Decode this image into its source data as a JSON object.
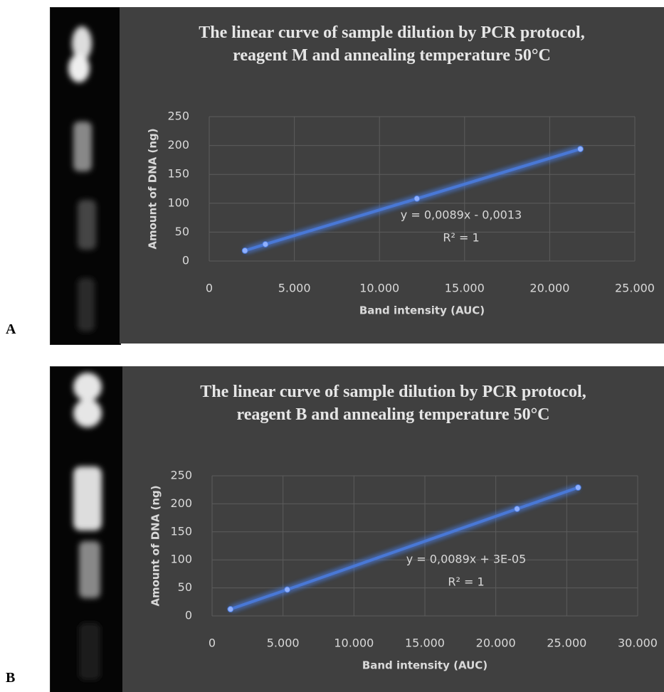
{
  "chart_data": [
    {
      "type": "scatter",
      "panel_label": "A",
      "title": "The linear curve of sample dilution by PCR protocol, reagent M and annealing temperature 50°C",
      "xlabel": "Band intensity (AUC)",
      "ylabel": "Amount of DNA  (ng)",
      "x": [
        2100,
        3300,
        12200,
        21800
      ],
      "values": [
        18,
        29,
        108,
        194
      ],
      "color": "#4a78d6",
      "grid": true,
      "line": true,
      "xlim": [
        0,
        25000
      ],
      "xticks": [
        0,
        {
          "value": 5000,
          "label": "5.000"
        },
        {
          "value": 10000,
          "label": "10.000"
        },
        {
          "value": 15000,
          "label": "15.000"
        },
        {
          "value": 20000,
          "label": "20.000"
        },
        {
          "value": 25000,
          "label": "25.000"
        }
      ],
      "ylim": [
        0,
        250
      ],
      "yticks": [
        0,
        50,
        100,
        150,
        200,
        250
      ],
      "annotations": [
        "y = 0,0089x - 0,0013",
        "R² = 1"
      ]
    },
    {
      "type": "scatter",
      "panel_label": "B",
      "title": "The linear curve of sample dilution by PCR protocol, reagent B and annealing temperature 50°C",
      "xlabel": "Band intensity (AUC)",
      "ylabel": "Amount of  DNA (ng)",
      "x": [
        1300,
        5300,
        21500,
        25800
      ],
      "values": [
        12,
        47,
        191,
        229
      ],
      "color": "#4a78d6",
      "grid": true,
      "line": true,
      "xlim": [
        0,
        30000
      ],
      "xticks": [
        0,
        {
          "value": 5000,
          "label": "5.000"
        },
        {
          "value": 10000,
          "label": "10.000"
        },
        {
          "value": 15000,
          "label": "15.000"
        },
        {
          "value": 20000,
          "label": "20.000"
        },
        {
          "value": 25000,
          "label": "25.000"
        },
        {
          "value": 30000,
          "label": "30.000"
        }
      ],
      "ylim": [
        0,
        250
      ],
      "yticks": [
        0,
        50,
        100,
        150,
        200,
        250
      ],
      "annotations": [
        "y = 0,0089x + 3E-05",
        "R² = 1"
      ]
    }
  ]
}
